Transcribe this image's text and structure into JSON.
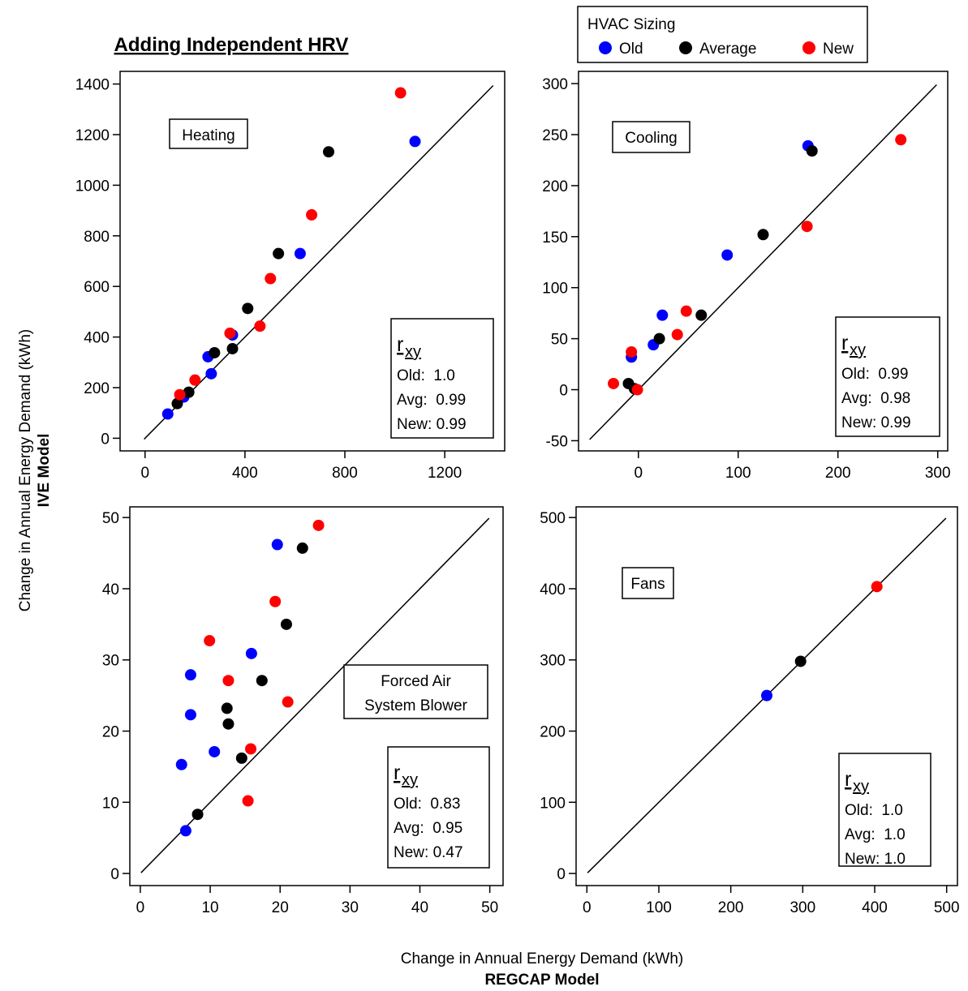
{
  "title": "Adding Independent HRV",
  "x_label": [
    "Change in Annual Energy Demand (kWh)",
    "REGCAP Model"
  ],
  "y_label": [
    "Change in Annual Energy Demand (kWh)",
    "IVE Model"
  ],
  "legend": {
    "title": "HVAC Sizing",
    "series": [
      {
        "name": "Old",
        "color": "#0000ff"
      },
      {
        "name": "Average",
        "color": "#000000"
      },
      {
        "name": "New",
        "color": "#ff0000"
      }
    ]
  },
  "chart_data": [
    {
      "type": "scatter",
      "label": [
        "Heating"
      ],
      "identity_line": true,
      "stats_symbol": "r",
      "stats_subscript": "xy",
      "stats": [
        "Old:  1.0",
        "Avg:  0.99",
        "New: 0.99"
      ],
      "xlim": [
        -100,
        1440
      ],
      "ylim": [
        -50,
        1450
      ],
      "xticks": [
        0,
        400,
        800,
        1200
      ],
      "yticks": [
        0,
        200,
        400,
        600,
        800,
        1000,
        1200,
        1400
      ],
      "series": [
        {
          "x": [
            1081,
            621,
            350,
            252,
            265,
            155,
            91
          ],
          "values": [
            1173,
            730,
            408,
            322,
            255,
            163,
            96
          ]
        },
        {
          "x": [
            735,
            534,
            411,
            278,
            350,
            175,
            129
          ],
          "values": [
            1132,
            730,
            513,
            338,
            354,
            182,
            137
          ]
        },
        {
          "x": [
            1023,
            667,
            502,
            460,
            340,
            200,
            139
          ],
          "values": [
            1365,
            883,
            631,
            443,
            415,
            230,
            172
          ]
        }
      ]
    },
    {
      "type": "scatter",
      "label": [
        "Cooling"
      ],
      "identity_line": true,
      "stats_symbol": "r",
      "stats_subscript": "xy",
      "stats": [
        "Old:  0.99",
        "Avg:  0.98",
        "New: 0.99"
      ],
      "xlim": [
        -60,
        310
      ],
      "ylim": [
        -60,
        312
      ],
      "xticks": [
        0,
        100,
        200,
        300
      ],
      "yticks": [
        -50,
        0,
        50,
        100,
        150,
        200,
        250,
        300
      ],
      "series": [
        {
          "x": [
            170,
            89,
            24,
            15,
            -7
          ],
          "values": [
            239,
            132,
            73,
            44,
            32
          ]
        },
        {
          "x": [
            174,
            125,
            63,
            21,
            -10,
            -4
          ],
          "values": [
            234,
            152,
            73,
            50,
            6,
            1
          ]
        },
        {
          "x": [
            263,
            169,
            48,
            39,
            -7,
            -25,
            -1
          ],
          "values": [
            245,
            160,
            77,
            54,
            37,
            6,
            0
          ]
        }
      ]
    },
    {
      "type": "scatter",
      "label": [
        "Forced Air",
        "System Blower"
      ],
      "identity_line": true,
      "stats_symbol": "r",
      "stats_subscript": "xy",
      "stats": [
        "Old:  0.83",
        "Avg:  0.95",
        "New: 0.47"
      ],
      "xlim": [
        -1.5,
        51.9
      ],
      "ylim": [
        -1.7,
        51.5
      ],
      "xticks": [
        0,
        10,
        20,
        30,
        40,
        50
      ],
      "yticks": [
        0,
        10,
        20,
        30,
        40,
        50
      ],
      "series": [
        {
          "x": [
            19.6,
            15.9,
            7.2,
            7.2,
            10.6,
            5.9,
            6.5
          ],
          "values": [
            46.2,
            30.9,
            27.9,
            22.3,
            17.1,
            15.3,
            6
          ]
        },
        {
          "x": [
            23.2,
            20.9,
            17.4,
            12.4,
            12.6,
            14.5,
            8.2
          ],
          "values": [
            45.7,
            35,
            27.1,
            23.2,
            21,
            16.2,
            8.3
          ]
        },
        {
          "x": [
            25.5,
            19.3,
            9.9,
            12.6,
            21.1,
            15.8,
            15.4
          ],
          "values": [
            48.9,
            38.2,
            32.7,
            27.1,
            24.1,
            17.5,
            10.2
          ]
        }
      ]
    },
    {
      "type": "scatter",
      "label": [
        "Fans"
      ],
      "identity_line": true,
      "stats_symbol": "r",
      "stats_subscript": "xy",
      "stats": [
        "Old:  1.0",
        "Avg:  1.0",
        "New: 1.0"
      ],
      "xlim": [
        -15,
        515
      ],
      "ylim": [
        -17,
        515
      ],
      "xticks": [
        0,
        100,
        200,
        300,
        400,
        500
      ],
      "yticks": [
        0,
        100,
        200,
        300,
        400,
        500
      ],
      "series": [
        {
          "x": [
            250
          ],
          "values": [
            250
          ]
        },
        {
          "x": [
            297
          ],
          "values": [
            298
          ]
        },
        {
          "x": [
            403
          ],
          "values": [
            403
          ]
        }
      ]
    }
  ]
}
